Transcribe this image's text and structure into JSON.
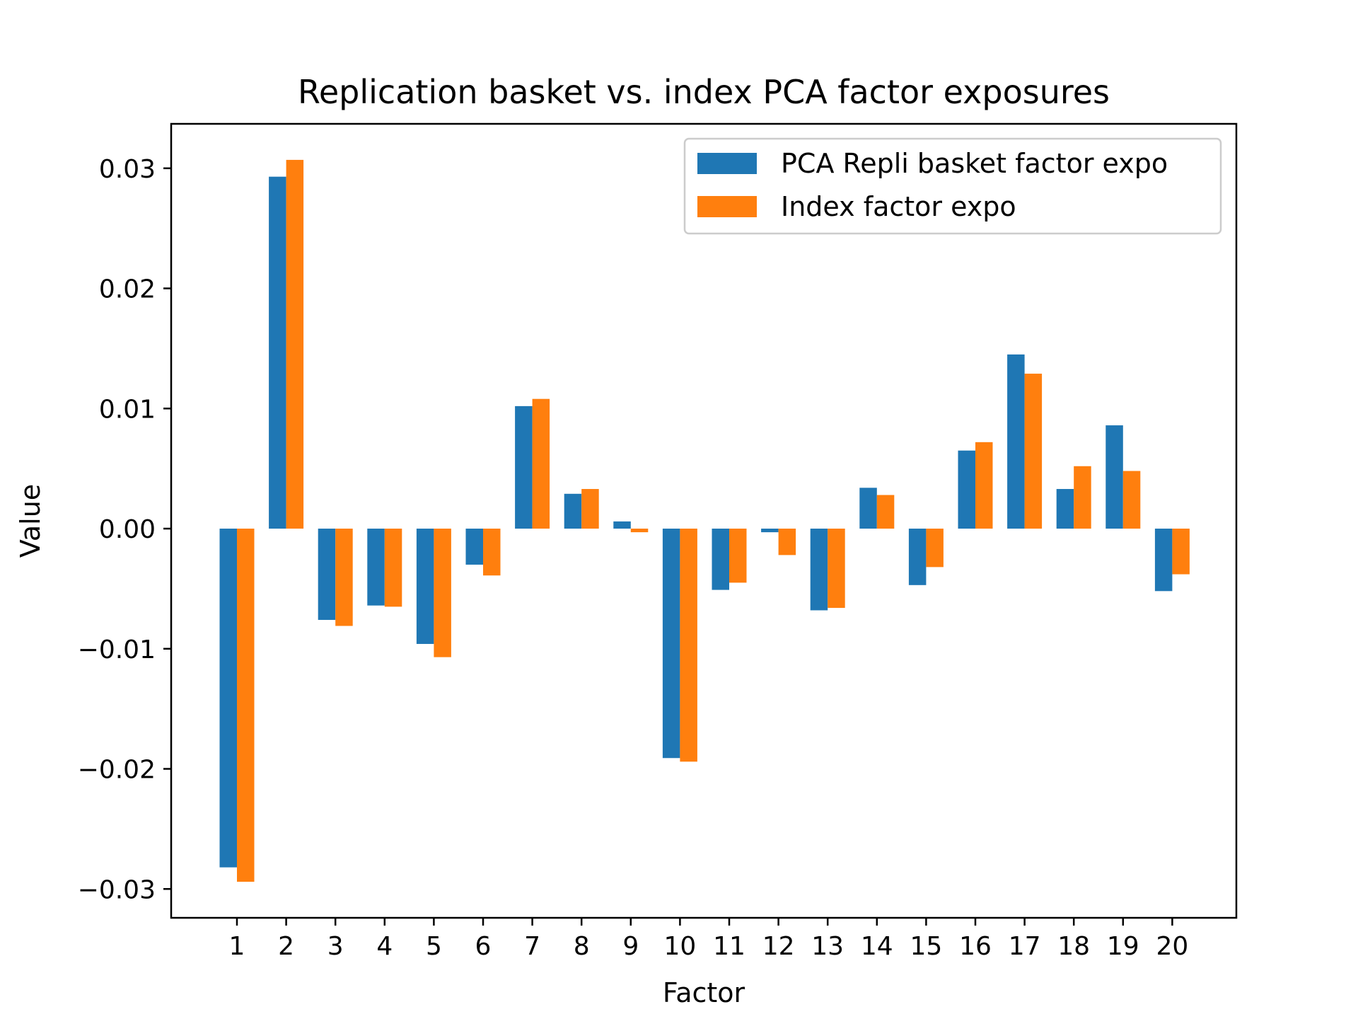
{
  "chart_data": {
    "type": "bar",
    "title": "Replication basket vs. index PCA factor exposures",
    "xlabel": "Factor",
    "ylabel": "Value",
    "categories": [
      "1",
      "2",
      "3",
      "4",
      "5",
      "6",
      "7",
      "8",
      "9",
      "10",
      "11",
      "12",
      "13",
      "14",
      "15",
      "16",
      "17",
      "18",
      "19",
      "20"
    ],
    "series": [
      {
        "name": "PCA Repli basket factor expo",
        "color": "#1f77b4",
        "values": [
          -0.0282,
          0.0293,
          -0.0076,
          -0.0064,
          -0.0096,
          -0.003,
          0.0102,
          0.0029,
          0.0006,
          -0.0191,
          -0.0051,
          -0.0003,
          -0.0068,
          0.0034,
          -0.0047,
          0.0065,
          0.0145,
          0.0033,
          0.0086,
          -0.0052
        ]
      },
      {
        "name": "Index factor expo",
        "color": "#ff7f0e",
        "values": [
          -0.0294,
          0.0307,
          -0.0081,
          -0.0065,
          -0.0107,
          -0.0039,
          0.0108,
          0.0033,
          -0.0003,
          -0.0194,
          -0.0045,
          -0.0022,
          -0.0066,
          0.0028,
          -0.0032,
          0.0072,
          0.0129,
          0.0052,
          0.0048,
          -0.0038
        ]
      }
    ],
    "ylim": [
      -0.0324,
      0.0337
    ],
    "yticks": [
      {
        "value": 0.03,
        "label": "0.03"
      },
      {
        "value": 0.02,
        "label": "0.02"
      },
      {
        "value": 0.01,
        "label": "0.01"
      },
      {
        "value": 0.0,
        "label": "0.00"
      },
      {
        "value": -0.01,
        "label": "−0.01"
      },
      {
        "value": -0.02,
        "label": "−0.02"
      },
      {
        "value": -0.03,
        "label": "−0.03"
      }
    ],
    "grid": false,
    "legend_position": "top-right"
  }
}
